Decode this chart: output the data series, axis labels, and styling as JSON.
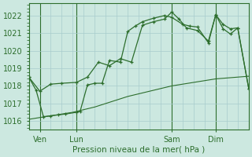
{
  "title": "Pression niveau de la mer( hPa )",
  "bg_color": "#cce8e0",
  "grid_color": "#a8cccc",
  "line_color": "#2d6e2d",
  "ylim": [
    1015.5,
    1022.7
  ],
  "yticks": [
    1016,
    1017,
    1018,
    1019,
    1020,
    1021,
    1022
  ],
  "xlim": [
    0,
    60
  ],
  "xtick_positions": [
    3,
    13,
    39,
    51
  ],
  "xtick_labels": [
    "Ven",
    "Lun",
    "Sam",
    "Dim"
  ],
  "vline_positions": [
    3,
    13,
    39,
    51
  ],
  "series_thin_x": [
    0,
    3,
    6,
    9,
    12,
    15,
    18,
    21,
    24,
    27,
    30,
    33,
    36,
    39,
    42,
    45,
    48,
    51,
    54,
    57,
    60
  ],
  "series_thin_y": [
    1016.1,
    1016.2,
    1016.3,
    1016.4,
    1016.5,
    1016.65,
    1016.8,
    1017.0,
    1017.2,
    1017.4,
    1017.55,
    1017.7,
    1017.85,
    1018.0,
    1018.1,
    1018.2,
    1018.3,
    1018.4,
    1018.45,
    1018.5,
    1018.55
  ],
  "series_a_x": [
    0,
    3,
    6,
    9,
    13,
    16,
    19,
    22,
    25,
    28,
    31,
    34,
    37,
    39,
    41,
    43,
    46,
    49,
    51,
    53,
    55,
    57,
    60
  ],
  "series_a_y": [
    1018.5,
    1017.7,
    1018.1,
    1018.15,
    1018.2,
    1018.5,
    1019.35,
    1019.15,
    1019.55,
    1019.35,
    1021.45,
    1021.65,
    1021.8,
    1022.2,
    1021.8,
    1021.3,
    1021.15,
    1020.55,
    1022.05,
    1021.5,
    1021.25,
    1021.3,
    1017.85
  ],
  "series_b_x": [
    0,
    2,
    4,
    6,
    8,
    10,
    13,
    14,
    16,
    18,
    20,
    22,
    25,
    27,
    29,
    31,
    34,
    37,
    39,
    42,
    44,
    46,
    49,
    51,
    53,
    55,
    57,
    60
  ],
  "series_b_y": [
    1018.5,
    1017.75,
    1016.25,
    1016.3,
    1016.35,
    1016.4,
    1016.5,
    1016.55,
    1018.05,
    1018.15,
    1018.15,
    1019.45,
    1019.35,
    1021.1,
    1021.4,
    1021.65,
    1021.85,
    1022.0,
    1021.9,
    1021.5,
    1021.4,
    1021.35,
    1020.45,
    1022.05,
    1021.25,
    1020.95,
    1021.3,
    1017.85
  ]
}
